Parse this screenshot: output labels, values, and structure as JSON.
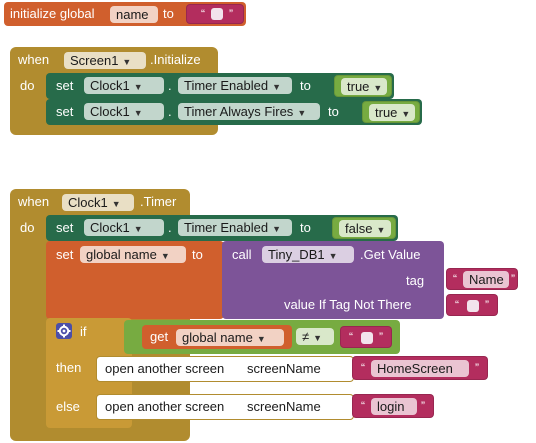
{
  "colors": {
    "variable": "#d05f2d",
    "event": "#b18c2f",
    "component_setter": "#276b4a",
    "logic": "#77ab41",
    "text": "#b32d5e",
    "procedure_call": "#7d5498"
  },
  "init_block": {
    "label": "initialize global",
    "var_name": "name",
    "to": "to",
    "open_quote": "“",
    "close_quote": "”"
  },
  "screen_init": {
    "when": "when",
    "component": "Screen1",
    "event": ".Initialize",
    "do": "do",
    "statements": [
      {
        "set": "set",
        "component": "Clock1",
        "dot": ".",
        "property": "Timer Enabled",
        "to": "to",
        "value": "true"
      },
      {
        "set": "set",
        "component": "Clock1",
        "dot": ".",
        "property": "Timer Always Fires",
        "to": "to",
        "value": "true"
      }
    ]
  },
  "clock_timer": {
    "when": "when",
    "component": "Clock1",
    "event": ".Timer",
    "do": "do",
    "set_clock": {
      "set": "set",
      "component": "Clock1",
      "dot": ".",
      "property": "Timer Enabled",
      "to": "to",
      "value": "false"
    },
    "set_global": {
      "set": "set",
      "var": "global name",
      "to": "to",
      "call": "call",
      "db": "Tiny_DB1",
      "method": ".Get Value",
      "tag_label": "tag",
      "tag_value": "Name",
      "default_label": "value If Tag Not There"
    },
    "if_block": {
      "if": "if",
      "then": "then",
      "else": "else",
      "gear_icon": "gear-icon",
      "get": "get",
      "get_var": "global name",
      "operator": "≠",
      "then_action": {
        "label": "open another screen",
        "param": "screenName",
        "value": "HomeScreen"
      },
      "else_action": {
        "label": "open another screen",
        "param": "screenName",
        "value": "login"
      }
    }
  }
}
